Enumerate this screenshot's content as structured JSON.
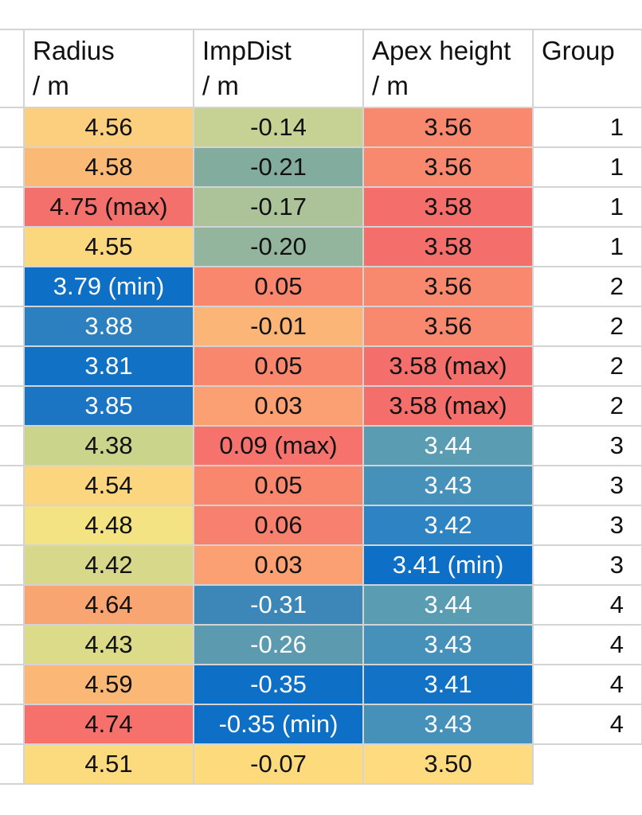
{
  "headers": [
    {
      "line1": "Radius",
      "line2": "/ m"
    },
    {
      "line1": "ImpDist",
      "line2": "/ m"
    },
    {
      "line1": "Apex height",
      "line2": "/ m"
    },
    {
      "line1": "Group",
      "line2": ""
    }
  ],
  "rows": [
    {
      "radius": "4.56",
      "impdist": "-0.14",
      "apex": "3.56",
      "group": "1"
    },
    {
      "radius": "4.58",
      "impdist": "-0.21",
      "apex": "3.56",
      "group": "1"
    },
    {
      "radius": "4.75 (max)",
      "impdist": "-0.17",
      "apex": "3.58",
      "group": "1"
    },
    {
      "radius": "4.55",
      "impdist": "-0.20",
      "apex": "3.58",
      "group": "1"
    },
    {
      "radius": "3.79 (min)",
      "impdist": "0.05",
      "apex": "3.56",
      "group": "2"
    },
    {
      "radius": "3.88",
      "impdist": "-0.01",
      "apex": "3.56",
      "group": "2"
    },
    {
      "radius": "3.81",
      "impdist": "0.05",
      "apex": "3.58 (max)",
      "group": "2"
    },
    {
      "radius": "3.85",
      "impdist": "0.03",
      "apex": "3.58 (max)",
      "group": "2"
    },
    {
      "radius": "4.38",
      "impdist": "0.09 (max)",
      "apex": "3.44",
      "group": "3"
    },
    {
      "radius": "4.54",
      "impdist": "0.05",
      "apex": "3.43",
      "group": "3"
    },
    {
      "radius": "4.48",
      "impdist": "0.06",
      "apex": "3.42",
      "group": "3"
    },
    {
      "radius": "4.42",
      "impdist": "0.03",
      "apex": "3.41 (min)",
      "group": "3"
    },
    {
      "radius": "4.64",
      "impdist": "-0.31",
      "apex": "3.44",
      "group": "4"
    },
    {
      "radius": "4.43",
      "impdist": "-0.26",
      "apex": "3.43",
      "group": "4"
    },
    {
      "radius": "4.59",
      "impdist": "-0.35",
      "apex": "3.41",
      "group": "4"
    },
    {
      "radius": "4.74",
      "impdist": "-0.35 (min)",
      "apex": "3.43",
      "group": "4"
    },
    {
      "radius": "4.51",
      "impdist": "-0.07",
      "apex": "3.50",
      "group": ""
    }
  ],
  "colors": {
    "radius": [
      "#fbcf7d",
      "#fbb976",
      "#f4706c",
      "#fbd87e",
      "#0d6fc6",
      "#2c80bf",
      "#1172c5",
      "#1b75c3",
      "#cad48a",
      "#fcd67e",
      "#f3e382",
      "#d7d88a",
      "#f8a571",
      "#dcdb89",
      "#fab775",
      "#f6716c",
      "#fcdb7f"
    ],
    "impdist": [
      "#c6d194",
      "#82ad9e",
      "#acc39a",
      "#93b59d",
      "#f8876e",
      "#fbb577",
      "#f8876e",
      "#faa072",
      "#f5736c",
      "#f8876e",
      "#f7806e",
      "#faa072",
      "#3d86b8",
      "#5c9aaf",
      "#0d6fc6",
      "#0d6fc6",
      "#fddb7d"
    ],
    "apex": [
      "#f8896f",
      "#f8896f",
      "#f46f6b",
      "#f46f6b",
      "#f8896f",
      "#f8896f",
      "#f46f6b",
      "#f46f6b",
      "#5a9cb2",
      "#4691ba",
      "#2e84c2",
      "#0d6fc6",
      "#5a9cb2",
      "#4691ba",
      "#1272c5",
      "#4691ba",
      "#fddb7e"
    ],
    "light_text": {
      "radius": [
        4,
        5,
        6,
        7
      ],
      "impdist": [
        12,
        13,
        14,
        15
      ],
      "apex": [
        8,
        9,
        10,
        11,
        12,
        13,
        14,
        15
      ]
    }
  }
}
